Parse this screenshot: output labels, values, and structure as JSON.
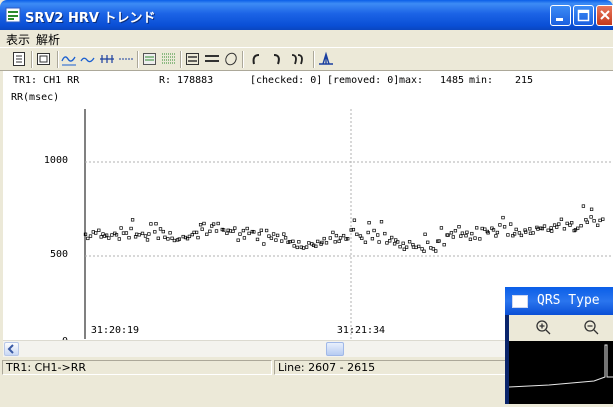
{
  "window": {
    "title": "SRV2 HRV トレンド"
  },
  "menu": [
    "表示",
    "解析"
  ],
  "info": {
    "trace": "TR1: CH1 RR",
    "r": "R: 178883",
    "checked": "[checked: 0]",
    "removed": "[removed: 0]",
    "max_label": "max:",
    "max_value": "1485",
    "min_label": "min:",
    "min_value": "215"
  },
  "chart_data": {
    "type": "scatter",
    "ylabel": "RR(msec)",
    "ylim": [
      0,
      1500
    ],
    "yticks": [
      "1000",
      "500",
      "0"
    ],
    "xticks": [
      "31:20:19",
      "31:21:34"
    ],
    "series": [
      {
        "segments": [
          {
            "x_start": 0,
            "x_end": 0.09,
            "y_start": 600,
            "y_end": 620
          },
          {
            "x_start": 0.09,
            "x_end": 0.19,
            "y_start": 620,
            "y_end": 590
          },
          {
            "x_start": 0.19,
            "x_end": 0.22,
            "y_start": 590,
            "y_end": 640
          },
          {
            "x_start": 0.22,
            "x_end": 0.27,
            "y_start": 640,
            "y_end": 620
          },
          {
            "x_start": 0.27,
            "x_end": 0.38,
            "y_start": 620,
            "y_end": 585
          },
          {
            "x_start": 0.38,
            "x_end": 0.43,
            "y_start": 585,
            "y_end": 545
          },
          {
            "x_start": 0.43,
            "x_end": 0.51,
            "y_start": 545,
            "y_end": 610
          },
          {
            "x_start": 0.51,
            "x_end": 0.58,
            "y_start": 610,
            "y_end": 580
          },
          {
            "x_start": 0.58,
            "x_end": 0.66,
            "y_start": 580,
            "y_end": 520
          },
          {
            "x_start": 0.66,
            "x_end": 0.7,
            "y_start": 520,
            "y_end": 605
          },
          {
            "x_start": 0.7,
            "x_end": 0.85,
            "y_start": 605,
            "y_end": 620
          },
          {
            "x_start": 0.85,
            "x_end": 1.0,
            "y_start": 620,
            "y_end": 690
          }
        ]
      }
    ],
    "grid": true
  },
  "status": {
    "left": "TR1: CH1->RR",
    "line": "Line:  2607 -   2615"
  },
  "qrs_window": {
    "title": "QRS Type"
  },
  "colors": {
    "accent": "#0a4fd6",
    "grid": "#b0b0b0",
    "marker": "#000000"
  },
  "toolbar_icons": [
    "doc-icon",
    "image-icon",
    "wave-icon",
    "wave2-icon",
    "ruler-icon",
    "dash-icon",
    "list-icon",
    "multiwave-icon",
    "equal-icon",
    "equal2-icon",
    "lasso-icon",
    "rotate-left-icon",
    "rotate-right-icon",
    "rotate-multi-icon",
    "spike-icon"
  ]
}
